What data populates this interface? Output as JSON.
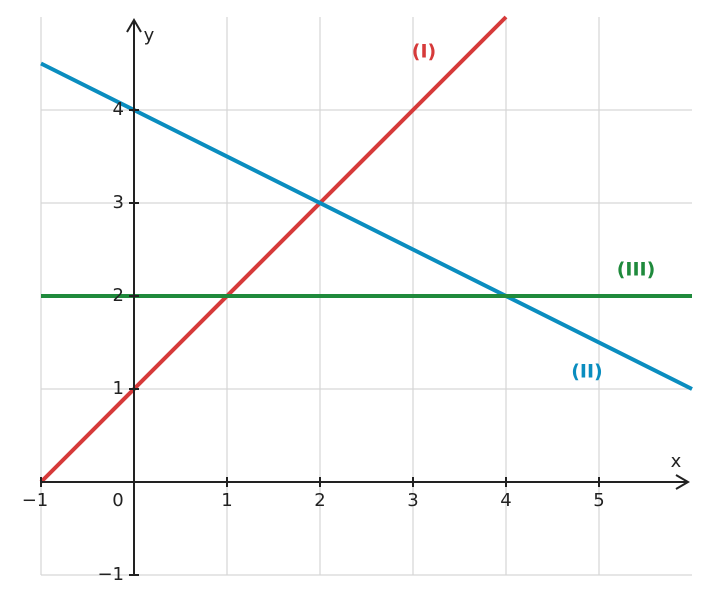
{
  "chart_data": {
    "type": "line",
    "x_label": "x",
    "y_label": "y",
    "xlim": [
      -1,
      6
    ],
    "ylim": [
      -1,
      5
    ],
    "xticks": [
      {
        "value": -1,
        "label": "−1"
      },
      0,
      1,
      2,
      3,
      4,
      5
    ],
    "yticks": [
      {
        "value": -1,
        "label": "−1"
      },
      1,
      2,
      3,
      4
    ],
    "grid": true,
    "series": [
      {
        "name": "(I)",
        "color": "#d63a3a",
        "x": [
          -1,
          4
        ],
        "values": [
          0,
          5
        ]
      },
      {
        "name": "(II)",
        "color": "#0a8dbf",
        "x": [
          -1,
          6
        ],
        "values": [
          4.5,
          1
        ]
      },
      {
        "name": "(III)",
        "color": "#1f8a3c",
        "x": [
          -1,
          6
        ],
        "values": [
          2,
          2
        ]
      }
    ]
  }
}
